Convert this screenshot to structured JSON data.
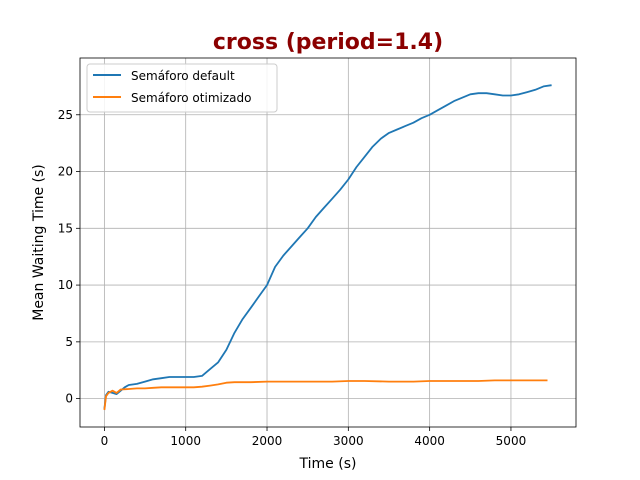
{
  "chart_data": {
    "type": "line",
    "title": "cross (period=1.4)",
    "xlabel": "Time (s)",
    "ylabel": "Mean Waiting Time (s)",
    "xlim": [
      -300,
      5800
    ],
    "ylim": [
      -2.5,
      30
    ],
    "xticks": [
      0,
      1000,
      2000,
      3000,
      4000,
      5000
    ],
    "yticks": [
      0,
      5,
      10,
      15,
      20,
      25
    ],
    "grid": true,
    "legend_position": "upper-left",
    "series": [
      {
        "name": "Semáforo default",
        "color": "#1f77b4",
        "points": [
          [
            0,
            -0.9
          ],
          [
            20,
            0.3
          ],
          [
            50,
            0.6
          ],
          [
            100,
            0.5
          ],
          [
            150,
            0.4
          ],
          [
            200,
            0.7
          ],
          [
            250,
            1.0
          ],
          [
            300,
            1.2
          ],
          [
            400,
            1.3
          ],
          [
            500,
            1.5
          ],
          [
            600,
            1.7
          ],
          [
            700,
            1.8
          ],
          [
            800,
            1.9
          ],
          [
            900,
            1.9
          ],
          [
            1000,
            1.9
          ],
          [
            1100,
            1.9
          ],
          [
            1200,
            2.0
          ],
          [
            1300,
            2.6
          ],
          [
            1400,
            3.2
          ],
          [
            1500,
            4.3
          ],
          [
            1600,
            5.8
          ],
          [
            1700,
            7.0
          ],
          [
            1800,
            8.0
          ],
          [
            1900,
            9.0
          ],
          [
            2000,
            10.0
          ],
          [
            2100,
            11.6
          ],
          [
            2200,
            12.6
          ],
          [
            2300,
            13.4
          ],
          [
            2400,
            14.2
          ],
          [
            2500,
            15.0
          ],
          [
            2600,
            16.0
          ],
          [
            2700,
            16.8
          ],
          [
            2800,
            17.6
          ],
          [
            2900,
            18.4
          ],
          [
            3000,
            19.3
          ],
          [
            3100,
            20.4
          ],
          [
            3200,
            21.3
          ],
          [
            3300,
            22.2
          ],
          [
            3400,
            22.9
          ],
          [
            3500,
            23.4
          ],
          [
            3600,
            23.7
          ],
          [
            3700,
            24.0
          ],
          [
            3800,
            24.3
          ],
          [
            3900,
            24.7
          ],
          [
            4000,
            25.0
          ],
          [
            4100,
            25.4
          ],
          [
            4200,
            25.8
          ],
          [
            4300,
            26.2
          ],
          [
            4400,
            26.5
          ],
          [
            4500,
            26.8
          ],
          [
            4600,
            26.9
          ],
          [
            4700,
            26.9
          ],
          [
            4800,
            26.8
          ],
          [
            4900,
            26.7
          ],
          [
            5000,
            26.7
          ],
          [
            5100,
            26.8
          ],
          [
            5200,
            27.0
          ],
          [
            5300,
            27.2
          ],
          [
            5400,
            27.5
          ],
          [
            5500,
            27.6
          ]
        ]
      },
      {
        "name": "Semáforo otimizado",
        "color": "#ff7f0e",
        "points": [
          [
            0,
            -1.0
          ],
          [
            20,
            0.2
          ],
          [
            50,
            0.5
          ],
          [
            100,
            0.7
          ],
          [
            150,
            0.5
          ],
          [
            200,
            0.8
          ],
          [
            300,
            0.85
          ],
          [
            400,
            0.9
          ],
          [
            500,
            0.9
          ],
          [
            600,
            0.95
          ],
          [
            700,
            1.0
          ],
          [
            800,
            1.0
          ],
          [
            900,
            1.0
          ],
          [
            1000,
            1.0
          ],
          [
            1100,
            1.0
          ],
          [
            1200,
            1.05
          ],
          [
            1300,
            1.15
          ],
          [
            1400,
            1.25
          ],
          [
            1500,
            1.4
          ],
          [
            1600,
            1.45
          ],
          [
            1700,
            1.45
          ],
          [
            1800,
            1.45
          ],
          [
            2000,
            1.5
          ],
          [
            2200,
            1.5
          ],
          [
            2500,
            1.5
          ],
          [
            2800,
            1.5
          ],
          [
            3000,
            1.55
          ],
          [
            3200,
            1.55
          ],
          [
            3500,
            1.5
          ],
          [
            3800,
            1.5
          ],
          [
            4000,
            1.55
          ],
          [
            4300,
            1.55
          ],
          [
            4600,
            1.55
          ],
          [
            4800,
            1.6
          ],
          [
            5000,
            1.6
          ],
          [
            5200,
            1.6
          ],
          [
            5400,
            1.6
          ],
          [
            5450,
            1.6
          ]
        ]
      }
    ]
  }
}
